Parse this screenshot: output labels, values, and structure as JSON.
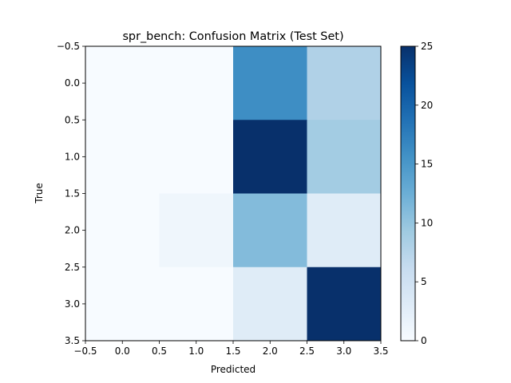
{
  "chart_data": {
    "type": "heatmap",
    "title": "spr_bench: Confusion Matrix (Test Set)",
    "xlabel": "Predicted",
    "ylabel": "True",
    "x_ticks": [
      "−0.5",
      "0.0",
      "0.5",
      "1.0",
      "1.5",
      "2.0",
      "2.5",
      "3.0",
      "3.5"
    ],
    "y_ticks": [
      "−0.5",
      "0.0",
      "0.5",
      "1.0",
      "1.5",
      "2.0",
      "2.5",
      "3.0",
      "3.5"
    ],
    "xlim": [
      -0.5,
      3.5
    ],
    "ylim": [
      3.5,
      -0.5
    ],
    "matrix": [
      [
        0,
        0,
        16,
        8
      ],
      [
        0,
        0,
        25,
        9
      ],
      [
        0,
        1,
        11,
        3
      ],
      [
        0,
        0,
        3,
        25
      ]
    ],
    "colormap": "Blues",
    "colorbar": {
      "min": 0,
      "max": 25,
      "ticks": [
        "0",
        "5",
        "10",
        "15",
        "20",
        "25"
      ]
    },
    "grid": false,
    "legend": "none"
  }
}
